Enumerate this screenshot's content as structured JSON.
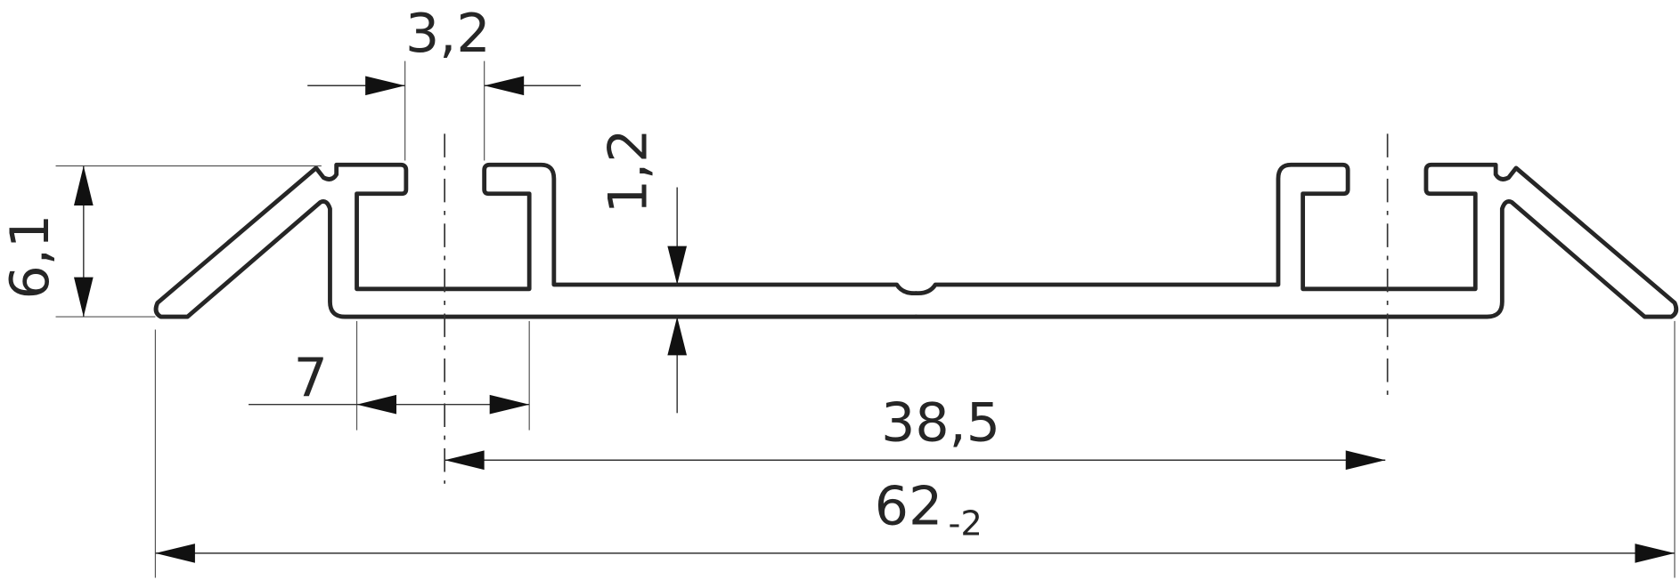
{
  "dimensions": {
    "slot_opening": "3,2",
    "height": "6,1",
    "wall_thickness": "1,2",
    "slot_width": "7",
    "slot_center_distance": "38,5",
    "overall_width": "62",
    "overall_width_tolerance": "-2"
  },
  "colors": {
    "line": "#262626"
  }
}
